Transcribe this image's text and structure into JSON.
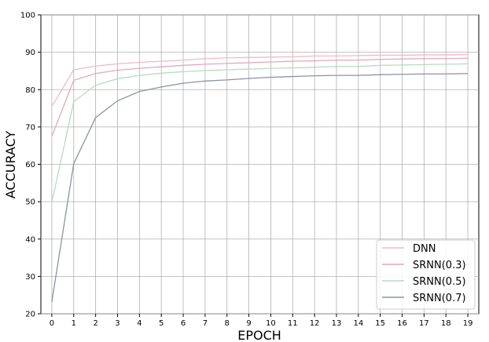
{
  "chart_data": {
    "type": "line",
    "title": "",
    "xlabel": "EPOCH",
    "ylabel": "ACCURACY",
    "x": [
      0,
      1,
      2,
      3,
      4,
      5,
      6,
      7,
      8,
      9,
      10,
      11,
      12,
      13,
      14,
      15,
      16,
      17,
      18,
      19
    ],
    "xlim": [
      -0.5,
      19.5
    ],
    "ylim": [
      20,
      100
    ],
    "yticks": [
      20,
      30,
      40,
      50,
      60,
      70,
      80,
      90,
      100
    ],
    "grid": true,
    "legend_position": "lower-right",
    "series": [
      {
        "name": "DNN",
        "color": "#f4b8c4",
        "values": [
          75.5,
          85.3,
          86.3,
          86.9,
          87.3,
          87.6,
          87.9,
          88.3,
          88.5,
          88.6,
          88.7,
          88.8,
          89.0,
          89.0,
          89.1,
          89.2,
          89.2,
          89.3,
          89.3,
          89.4
        ]
      },
      {
        "name": "SRNN(0.3)",
        "color": "#e3a8bd",
        "values": [
          67.5,
          82.5,
          84.3,
          85.2,
          85.7,
          86.1,
          86.5,
          86.8,
          87.0,
          87.2,
          87.4,
          87.6,
          87.7,
          87.9,
          87.9,
          88.1,
          88.2,
          88.3,
          88.3,
          88.4
        ]
      },
      {
        "name": "SRNN(0.5)",
        "color": "#b5dcc0",
        "values": [
          49.8,
          76.8,
          81.2,
          82.9,
          83.8,
          84.4,
          84.8,
          85.1,
          85.3,
          85.5,
          85.7,
          85.8,
          86.0,
          86.2,
          86.2,
          86.5,
          86.6,
          86.7,
          86.8,
          86.9
        ]
      },
      {
        "name": "SRNN(0.7)",
        "color": "#8a93a6",
        "values": [
          23.2,
          60.2,
          72.5,
          77.0,
          79.5,
          80.7,
          81.7,
          82.3,
          82.6,
          83.0,
          83.3,
          83.5,
          83.7,
          83.8,
          83.8,
          84.0,
          84.1,
          84.2,
          84.2,
          84.3
        ]
      }
    ]
  }
}
